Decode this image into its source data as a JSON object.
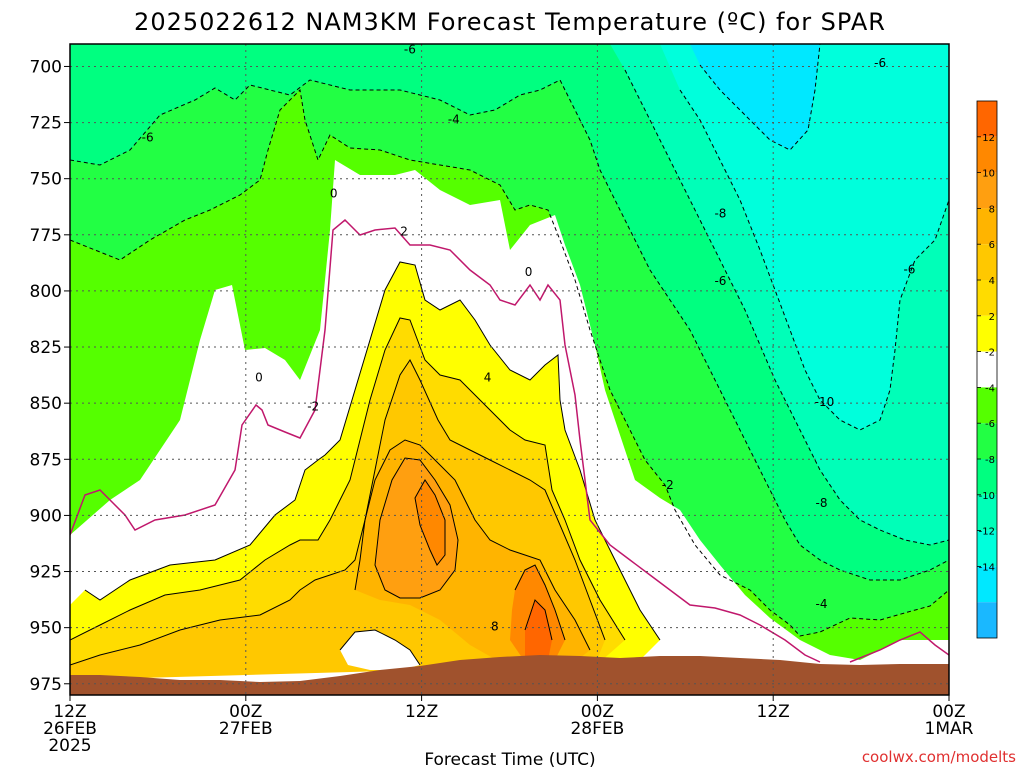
{
  "chart_data": {
    "type": "heatmap",
    "title": "2025022612 NAM3KM Forecast Temperature (ºC) for SPAR",
    "xlabel": "Forecast Time (UTC)",
    "credit": "coolwx.com/modelts",
    "y_levels": [
      700,
      725,
      750,
      775,
      800,
      825,
      850,
      875,
      900,
      925,
      950,
      975
    ],
    "ylim": [
      980,
      690
    ],
    "y_axis": "pressure (hPa), inverted",
    "x_ticks": [
      {
        "hour": 0,
        "line1": "12Z",
        "line2": "26FEB",
        "line3": "2025"
      },
      {
        "hour": 12,
        "line1": "00Z",
        "line2": "27FEB",
        "line3": ""
      },
      {
        "hour": 24,
        "line1": "12Z",
        "line2": "",
        "line3": ""
      },
      {
        "hour": 36,
        "line1": "00Z",
        "line2": "28FEB",
        "line3": ""
      },
      {
        "hour": 48,
        "line1": "12Z",
        "line2": "",
        "line3": ""
      },
      {
        "hour": 60,
        "line1": "00Z",
        "line2": "1MAR",
        "line3": ""
      }
    ],
    "xlim": [
      0,
      60
    ],
    "grid": true,
    "colorbar": {
      "labels": [
        "12",
        "10",
        "8",
        "6",
        "4",
        "2",
        "-2",
        "-4",
        "-6",
        "-8",
        "-10",
        "-12",
        "-14"
      ],
      "bins": [
        {
          "range": [
            14,
            16
          ],
          "color": "#ff6600"
        },
        {
          "range": [
            12,
            14
          ],
          "color": "#ff8800"
        },
        {
          "range": [
            10,
            12
          ],
          "color": "#ff9f10"
        },
        {
          "range": [
            8,
            10
          ],
          "color": "#ffb400"
        },
        {
          "range": [
            6,
            8
          ],
          "color": "#ffc800"
        },
        {
          "range": [
            4,
            6
          ],
          "color": "#ffdc00"
        },
        {
          "range": [
            2,
            4
          ],
          "color": "#ffff00"
        },
        {
          "range": [
            -2,
            2
          ],
          "color": "#ffffff"
        },
        {
          "range": [
            -4,
            -2
          ],
          "color": "#55ff00"
        },
        {
          "range": [
            -6,
            -4
          ],
          "color": "#22ff44"
        },
        {
          "range": [
            -8,
            -6
          ],
          "color": "#00ff80"
        },
        {
          "range": [
            -10,
            -8
          ],
          "color": "#00ffb8"
        },
        {
          "range": [
            -12,
            -10
          ],
          "color": "#00ffdc"
        },
        {
          "range": [
            -14,
            -12
          ],
          "color": "#00e8ff"
        },
        {
          "range": [
            -16,
            -14
          ],
          "color": "#1ab8ff"
        }
      ]
    },
    "contour_labels": [
      {
        "text": "-6",
        "hour": 23.2,
        "p": 693
      },
      {
        "text": "-6",
        "hour": 5.3,
        "p": 732
      },
      {
        "text": "-4",
        "hour": 26.2,
        "p": 724
      },
      {
        "text": "-6",
        "hour": 55.3,
        "p": 699
      },
      {
        "text": "0",
        "hour": 18.0,
        "p": 757
      },
      {
        "text": "2",
        "hour": 22.8,
        "p": 774
      },
      {
        "text": "0",
        "hour": 31.3,
        "p": 792
      },
      {
        "text": "-8",
        "hour": 44.4,
        "p": 766
      },
      {
        "text": "-6",
        "hour": 44.4,
        "p": 796
      },
      {
        "text": "-6",
        "hour": 57.3,
        "p": 791
      },
      {
        "text": "-2",
        "hour": 16.6,
        "p": 852
      },
      {
        "text": "0",
        "hour": 12.9,
        "p": 839
      },
      {
        "text": "4",
        "hour": 28.5,
        "p": 839
      },
      {
        "text": "-10",
        "hour": 51.5,
        "p": 850
      },
      {
        "text": "-2",
        "hour": 40.8,
        "p": 887
      },
      {
        "text": "-8",
        "hour": 51.3,
        "p": 895
      },
      {
        "text": "8",
        "hour": 29.0,
        "p": 950
      },
      {
        "text": "-4",
        "hour": 51.3,
        "p": 940
      }
    ]
  }
}
